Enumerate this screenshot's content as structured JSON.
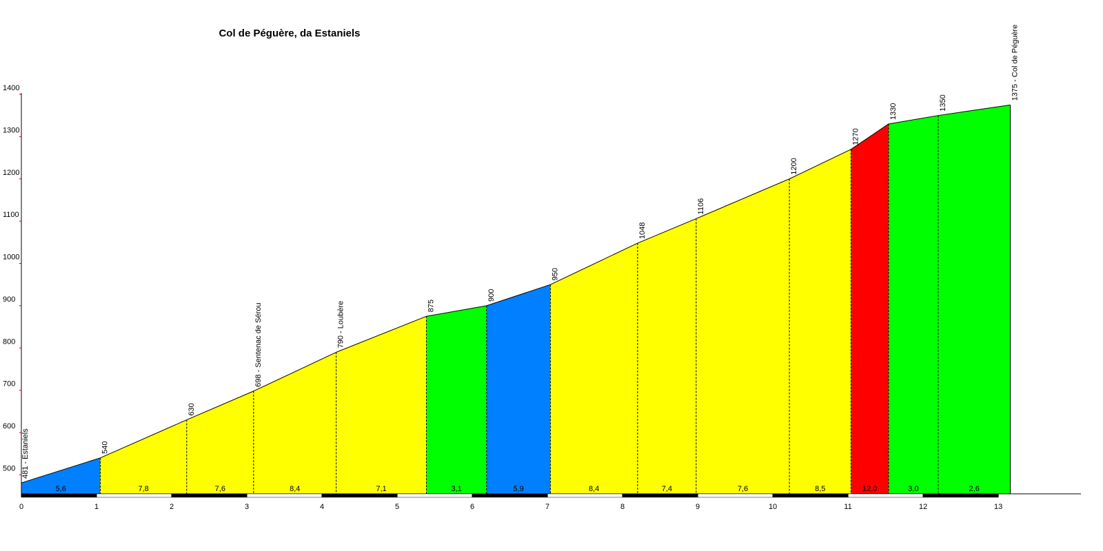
{
  "chart_data": {
    "type": "area",
    "title": "Col de Péguère, da Estaniels",
    "x": [
      0,
      1.05,
      2.2,
      3.09,
      4.19,
      5.39,
      6.19,
      7.04,
      8.2,
      8.98,
      10.22,
      11.04,
      11.54,
      12.2,
      13.16
    ],
    "values": [
      481,
      540,
      630,
      698,
      790,
      875,
      900,
      950,
      1048,
      1106,
      1200,
      1270,
      1330,
      1350,
      1375
    ],
    "point_labels": [
      "481 - Estaniels",
      "540",
      "630",
      "698 - Sentenac de Sérou",
      "790 - Loubère",
      "875",
      "900",
      "950",
      "1048",
      "1106",
      "1200",
      "1270",
      "1330",
      "1350",
      "1375 - Col de Péguère"
    ],
    "segments": {
      "values": [
        5.6,
        7.8,
        7.6,
        8.4,
        7.1,
        3.1,
        5.9,
        8.4,
        7.4,
        7.6,
        8.5,
        12.0,
        3.0,
        2.6
      ],
      "value_labels": [
        "5,6",
        "7,8",
        "7,6",
        "8,4",
        "7,1",
        "3,1",
        "5,9",
        "8,4",
        "7,4",
        "7,6",
        "8,5",
        "12,0",
        "3,0",
        "2,6"
      ],
      "colors": [
        "#0080ff",
        "#ffff00",
        "#ffff00",
        "#ffff00",
        "#ffff00",
        "#00ff00",
        "#0080ff",
        "#ffff00",
        "#ffff00",
        "#ffff00",
        "#ffff00",
        "#ff0000",
        "#00ff00",
        "#00ff00"
      ]
    },
    "xlim": [
      0,
      14.1
    ],
    "xticks": [
      0,
      1,
      2,
      3,
      4,
      5,
      6,
      7,
      8,
      9,
      10,
      11,
      12,
      13
    ],
    "ylim": [
      455,
      1400
    ],
    "yticks": [
      500,
      600,
      700,
      800,
      900,
      1000,
      1100,
      1200,
      1300,
      1400
    ]
  }
}
